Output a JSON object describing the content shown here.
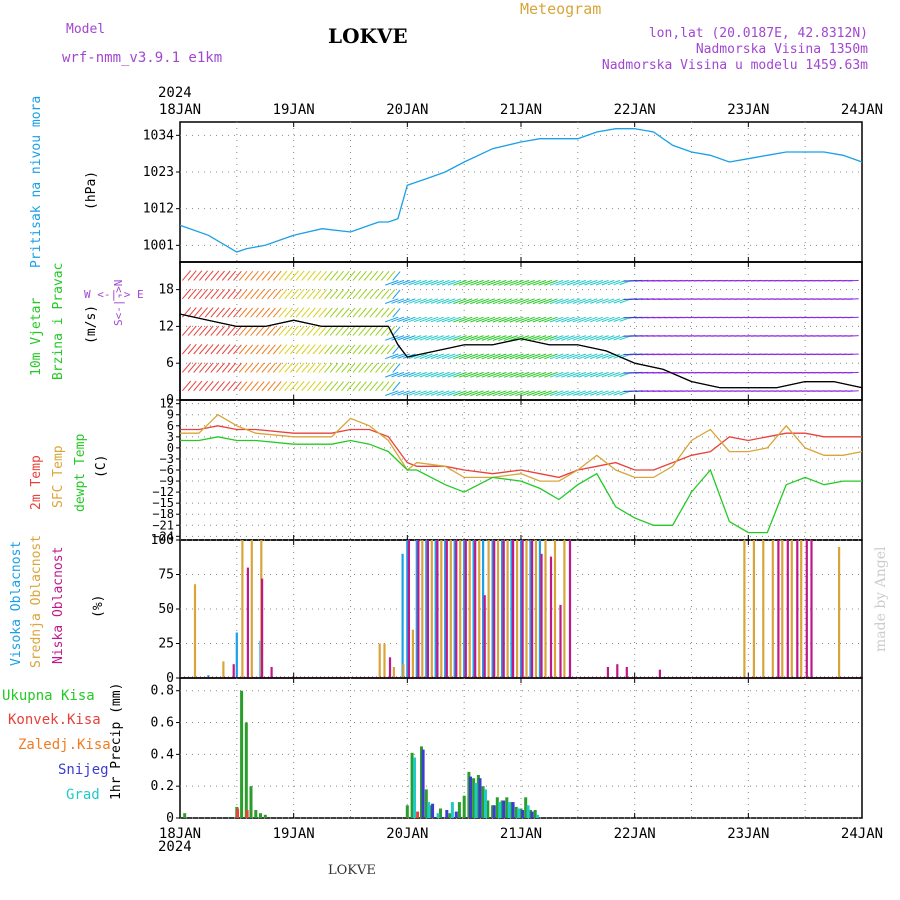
{
  "header": {
    "model_label": "Model",
    "model_name": "wrf-nmm_v3.9.1 e1km",
    "station_title": "LOKVE",
    "meteogram_label": "Meteogram",
    "lonlat": "lon,lat (20.0187E, 42.8312N)",
    "elevation": "Nadmorska Visina 1350m",
    "model_elevation": "Nadmorska Visina u modelu 1459.63m",
    "year": "2024"
  },
  "footer": {
    "station": "LOKVE",
    "watermark": "made by Angel"
  },
  "colors": {
    "pressure": "#1aa0e6",
    "temp2m": "#e8413b",
    "sfc": "#d9a53a",
    "dewpt": "#25c925",
    "cloud_high": "#1aa0e6",
    "cloud_mid": "#d9a53a",
    "cloud_low": "#c0188a",
    "precip_total": "#2a9d2a",
    "precip_conv": "#e8413b",
    "precip_frozen": "#f07d20",
    "snow": "#3c3cd0",
    "hail": "#22c9c9",
    "labels_purple": "#a247d0"
  },
  "chart_data": [
    {
      "type": "line",
      "panel": "pressure",
      "ylabel": "Pritisak na nivou mora",
      "unit": "(hPa)",
      "yticks": [
        1001,
        1012,
        1023,
        1034
      ],
      "ylim": [
        996,
        1038
      ],
      "xticks": [
        "18JAN",
        "19JAN",
        "20JAN",
        "21JAN",
        "22JAN",
        "23JAN",
        "24JAN"
      ],
      "xlim": [
        0,
        144
      ],
      "series": [
        {
          "x": [
            0,
            6,
            12,
            14,
            18,
            24,
            30,
            36,
            40,
            42,
            44,
            46,
            48,
            52,
            56,
            60,
            66,
            72,
            76,
            80,
            84,
            88,
            92,
            96,
            100,
            104,
            108,
            112,
            116,
            120,
            124,
            128,
            132,
            136,
            140,
            144
          ],
          "values": [
            1007,
            1004,
            999,
            1000,
            1001,
            1004,
            1006,
            1005,
            1007,
            1008,
            1008,
            1009,
            1019,
            1021,
            1023,
            1026,
            1030,
            1032,
            1033,
            1033,
            1033,
            1035,
            1036,
            1036,
            1035,
            1031,
            1029,
            1028,
            1026,
            1027,
            1028,
            1029,
            1029,
            1029,
            1028,
            1026
          ]
        }
      ]
    },
    {
      "type": "line",
      "panel": "wind",
      "ylabel": "10m Vjetar Brzina i Pravac",
      "unit": "(m/s)",
      "compass": {
        "n": "N",
        "w": "W",
        "e": "E",
        "s": "S"
      },
      "yticks": [
        0,
        6,
        12,
        18
      ],
      "ylim": [
        0,
        22.5
      ],
      "series": [
        {
          "x": [
            0,
            6,
            12,
            18,
            24,
            30,
            36,
            40,
            44,
            46,
            48,
            54,
            60,
            66,
            72,
            78,
            84,
            90,
            96,
            102,
            108,
            114,
            120,
            126,
            132,
            138,
            144
          ],
          "values": [
            14,
            13,
            12,
            12,
            13,
            12,
            12,
            12,
            12,
            9,
            7,
            8,
            9,
            9,
            10,
            9,
            9,
            8,
            6,
            5,
            3,
            2,
            2,
            2,
            3,
            3,
            2
          ]
        }
      ]
    },
    {
      "type": "line",
      "panel": "temperature",
      "ylabels": [
        "2m Temp",
        "SFC Temp",
        "dewpt Temp"
      ],
      "unit": "(C)",
      "yticks": [
        12,
        9,
        6,
        3,
        0,
        -3,
        -6,
        -9,
        -12,
        -15,
        -18,
        -21,
        -24
      ],
      "ylim": [
        -25,
        13
      ],
      "series": [
        {
          "name": "2m Temp",
          "x": [
            0,
            4,
            8,
            12,
            16,
            24,
            32,
            36,
            40,
            44,
            48,
            50,
            56,
            60,
            66,
            72,
            76,
            80,
            84,
            88,
            92,
            96,
            100,
            104,
            108,
            112,
            116,
            120,
            124,
            128,
            132,
            136,
            140,
            144
          ],
          "values": [
            5,
            5,
            6,
            5,
            5,
            4,
            4,
            5,
            5,
            3,
            -4,
            -5,
            -5,
            -6,
            -7,
            -6,
            -7,
            -8,
            -6,
            -5,
            -4,
            -6,
            -6,
            -4,
            -2,
            -1,
            3,
            2,
            3,
            4,
            4,
            3,
            3,
            3
          ]
        },
        {
          "name": "SFC Temp",
          "x": [
            0,
            4,
            8,
            12,
            16,
            24,
            32,
            36,
            40,
            44,
            48,
            50,
            56,
            60,
            66,
            72,
            76,
            80,
            84,
            88,
            92,
            96,
            100,
            104,
            108,
            112,
            116,
            120,
            124,
            128,
            132,
            136,
            140,
            144
          ],
          "values": [
            4,
            4,
            9,
            6,
            4,
            3,
            3,
            8,
            6,
            2,
            -6,
            -4,
            -5,
            -8,
            -8,
            -7,
            -9,
            -9,
            -6,
            -2,
            -6,
            -8,
            -8,
            -5,
            2,
            5,
            -1,
            -1,
            0,
            6,
            0,
            -2,
            -2,
            -1
          ]
        },
        {
          "name": "dewpt Temp",
          "x": [
            0,
            4,
            8,
            12,
            16,
            24,
            32,
            36,
            40,
            44,
            48,
            50,
            56,
            60,
            66,
            72,
            76,
            80,
            84,
            88,
            92,
            96,
            100,
            104,
            108,
            112,
            116,
            120,
            124,
            128,
            132,
            136,
            140,
            144
          ],
          "values": [
            2,
            2,
            3,
            2,
            2,
            1,
            1,
            2,
            1,
            -1,
            -6,
            -6,
            -10,
            -12,
            -8,
            -9,
            -11,
            -14,
            -10,
            -7,
            -16,
            -19,
            -21,
            -21,
            -12,
            -6,
            -20,
            -23,
            -23,
            -10,
            -8,
            -10,
            -9,
            -9
          ]
        }
      ]
    },
    {
      "type": "bar",
      "panel": "clouds",
      "ylabels": [
        "Visoka Oblacnost",
        "Srednja Oblacnost",
        "Niska Oblacnost"
      ],
      "unit": "(%)",
      "yticks": [
        0,
        25,
        50,
        75,
        100
      ],
      "ylim": [
        0,
        100
      ],
      "series": [
        {
          "name": "Visoka Oblacnost",
          "x": [
            6,
            12,
            17,
            47,
            48,
            50,
            52,
            54,
            56,
            58,
            60,
            62,
            64,
            66,
            68,
            70,
            72,
            74,
            76
          ],
          "values": [
            2,
            33,
            27,
            90,
            100,
            100,
            100,
            100,
            100,
            100,
            100,
            100,
            100,
            100,
            100,
            100,
            100,
            100,
            100
          ]
        },
        {
          "name": "Srednja Oblacnost",
          "x": [
            3,
            9,
            13,
            15,
            17,
            42,
            43,
            45,
            47,
            49,
            51,
            53,
            55,
            57,
            59,
            61,
            63,
            65,
            67,
            69,
            71,
            73,
            75,
            77,
            79,
            81,
            119,
            121,
            123,
            125,
            127,
            129,
            131,
            139
          ],
          "values": [
            68,
            12,
            100,
            100,
            100,
            25,
            25,
            8,
            10,
            35,
            100,
            100,
            100,
            100,
            100,
            100,
            100,
            100,
            100,
            100,
            100,
            100,
            100,
            100,
            100,
            100,
            100,
            100,
            100,
            100,
            100,
            100,
            100,
            95
          ]
        },
        {
          "name": "Niska Oblacnost",
          "x": [
            11,
            14,
            17,
            19,
            44,
            48,
            50,
            52,
            54,
            56,
            58,
            60,
            62,
            64,
            66,
            68,
            70,
            72,
            74,
            76,
            78,
            80,
            82,
            90,
            92,
            94,
            101,
            126,
            128,
            130,
            132,
            133
          ],
          "values": [
            10,
            80,
            72,
            8,
            15,
            100,
            100,
            100,
            100,
            100,
            100,
            100,
            100,
            60,
            100,
            100,
            100,
            100,
            100,
            90,
            88,
            53,
            100,
            8,
            10,
            8,
            6,
            100,
            100,
            100,
            100,
            100
          ]
        }
      ]
    },
    {
      "type": "bar",
      "panel": "precip",
      "ylabels": [
        "Ukupna Kisa",
        "Konvek.Kisa",
        "Zaledj.Kisa",
        "Snijeg",
        "Grad"
      ],
      "unit": "1hr Precip (mm)",
      "yticks": [
        0,
        0.2,
        0.4,
        0.6,
        0.8
      ],
      "ylim": [
        0,
        0.88
      ],
      "series": [
        {
          "name": "Ukupna Kisa",
          "x": [
            1,
            12,
            13,
            14,
            15,
            16,
            17,
            18,
            48,
            49,
            51,
            52,
            53,
            55,
            57,
            59,
            60,
            61,
            62,
            63,
            64,
            65,
            66,
            67,
            68,
            69,
            70,
            71,
            72,
            73,
            74,
            75
          ],
          "values": [
            0.03,
            0.07,
            0.8,
            0.6,
            0.2,
            0.05,
            0.03,
            0.02,
            0.08,
            0.41,
            0.45,
            0.18,
            0.08,
            0.06,
            0.03,
            0.1,
            0.14,
            0.29,
            0.25,
            0.27,
            0.2,
            0.11,
            0.08,
            0.13,
            0.11,
            0.13,
            0.1,
            0.07,
            0.06,
            0.13,
            0.05,
            0.05
          ]
        },
        {
          "name": "Konvek.Kisa",
          "x": [
            12,
            14,
            50
          ],
          "values": [
            0.06,
            0.05,
            0.04
          ]
        },
        {
          "name": "Snijeg",
          "x": [
            51,
            53,
            56,
            58,
            61,
            63,
            66,
            68,
            70,
            72,
            74
          ],
          "values": [
            0.43,
            0.09,
            0.05,
            0.04,
            0.26,
            0.25,
            0.08,
            0.11,
            0.1,
            0.05,
            0.04
          ]
        },
        {
          "name": "Grad",
          "x": [
            49,
            52,
            54,
            57,
            62,
            64,
            67,
            69,
            71,
            73,
            75
          ],
          "values": [
            0.38,
            0.1,
            0.03,
            0.1,
            0.22,
            0.18,
            0.1,
            0.1,
            0.06,
            0.08,
            0.02
          ]
        }
      ]
    }
  ]
}
